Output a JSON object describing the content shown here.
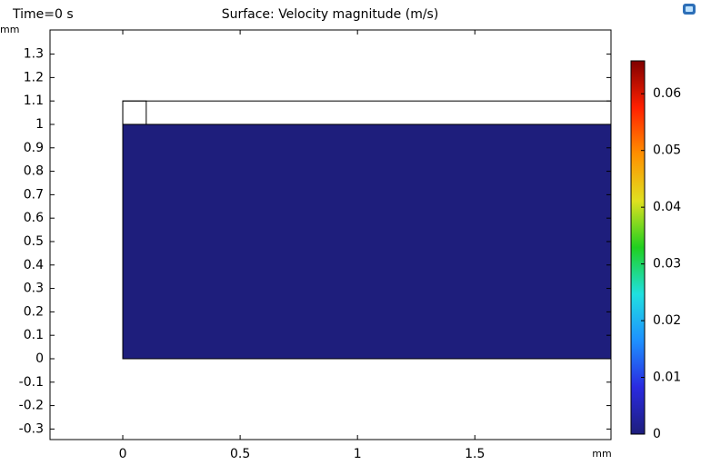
{
  "chart_data": {
    "type": "surface",
    "title": "Surface: Velocity magnitude (m/s)",
    "time_label": "Time=0 s",
    "x_unit": "mm",
    "y_unit": "mm",
    "xlim": [
      -0.31,
      2.08
    ],
    "ylim": [
      -0.345,
      1.403
    ],
    "xticks": [
      0,
      0.5,
      1,
      1.5
    ],
    "yticks": [
      -0.3,
      -0.2,
      -0.1,
      0,
      0.1,
      0.2,
      0.3,
      0.4,
      0.5,
      0.6,
      0.7,
      0.8,
      0.9,
      1,
      1.1,
      1.2,
      1.3
    ],
    "regions": [
      {
        "x": [
          0,
          2.08
        ],
        "y": [
          0,
          1
        ],
        "value": 0
      }
    ],
    "boundaries": [
      {
        "x": [
          0,
          2.08
        ],
        "y": [
          1,
          1.1
        ]
      },
      {
        "x": [
          0,
          0.1
        ],
        "y": [
          1,
          1.1
        ]
      }
    ],
    "colorbar": {
      "lim": [
        0,
        0.0658
      ],
      "ticks": [
        0,
        0.01,
        0.02,
        0.03,
        0.04,
        0.05,
        0.06
      ],
      "colormap": [
        "#1e1e7c",
        "#2a2ae0",
        "#1e90ff",
        "#20e0e0",
        "#20d020",
        "#e0e020",
        "#ff9000",
        "#ff2000",
        "#800000"
      ]
    }
  }
}
